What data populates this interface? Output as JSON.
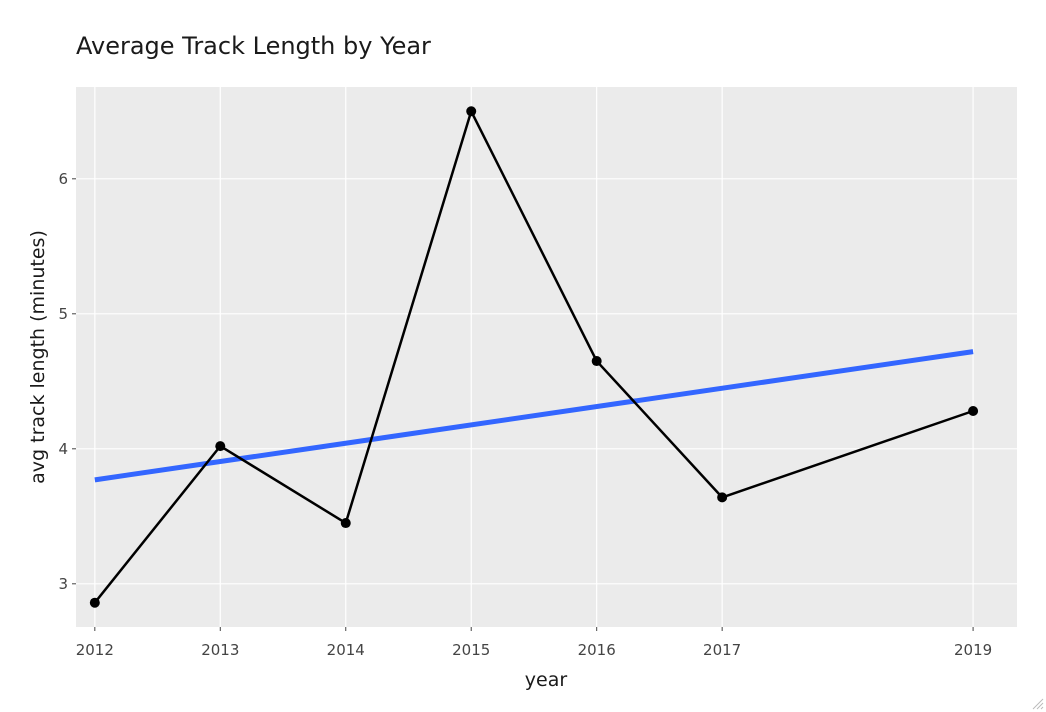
{
  "chart_data": {
    "type": "line",
    "title": "Average Track Length by Year",
    "xlabel": "year",
    "ylabel": "avg track length (minutes)",
    "xlim": [
      2011.85,
      2019.35
    ],
    "ylim": [
      2.68,
      6.68
    ],
    "x_ticks": [
      2012,
      2013,
      2014,
      2015,
      2016,
      2017,
      2019
    ],
    "y_ticks": [
      3,
      4,
      5,
      6
    ],
    "grid": true,
    "legend": "none",
    "series": [
      {
        "x": [
          2012,
          2013,
          2014,
          2015,
          2016,
          2017,
          2019
        ],
        "y": [
          2.86,
          4.02,
          3.45,
          6.5,
          4.65,
          3.64,
          4.28
        ],
        "color": "#000000",
        "markers": true
      },
      {
        "x": [
          2012,
          2019
        ],
        "y": [
          3.77,
          4.72
        ],
        "color": "#3366ff",
        "markers": false
      }
    ],
    "colors": {
      "panel_background": "#ebebeb",
      "grid": "#ffffff",
      "data_line": "#000000",
      "trend_line": "#3366ff"
    }
  }
}
